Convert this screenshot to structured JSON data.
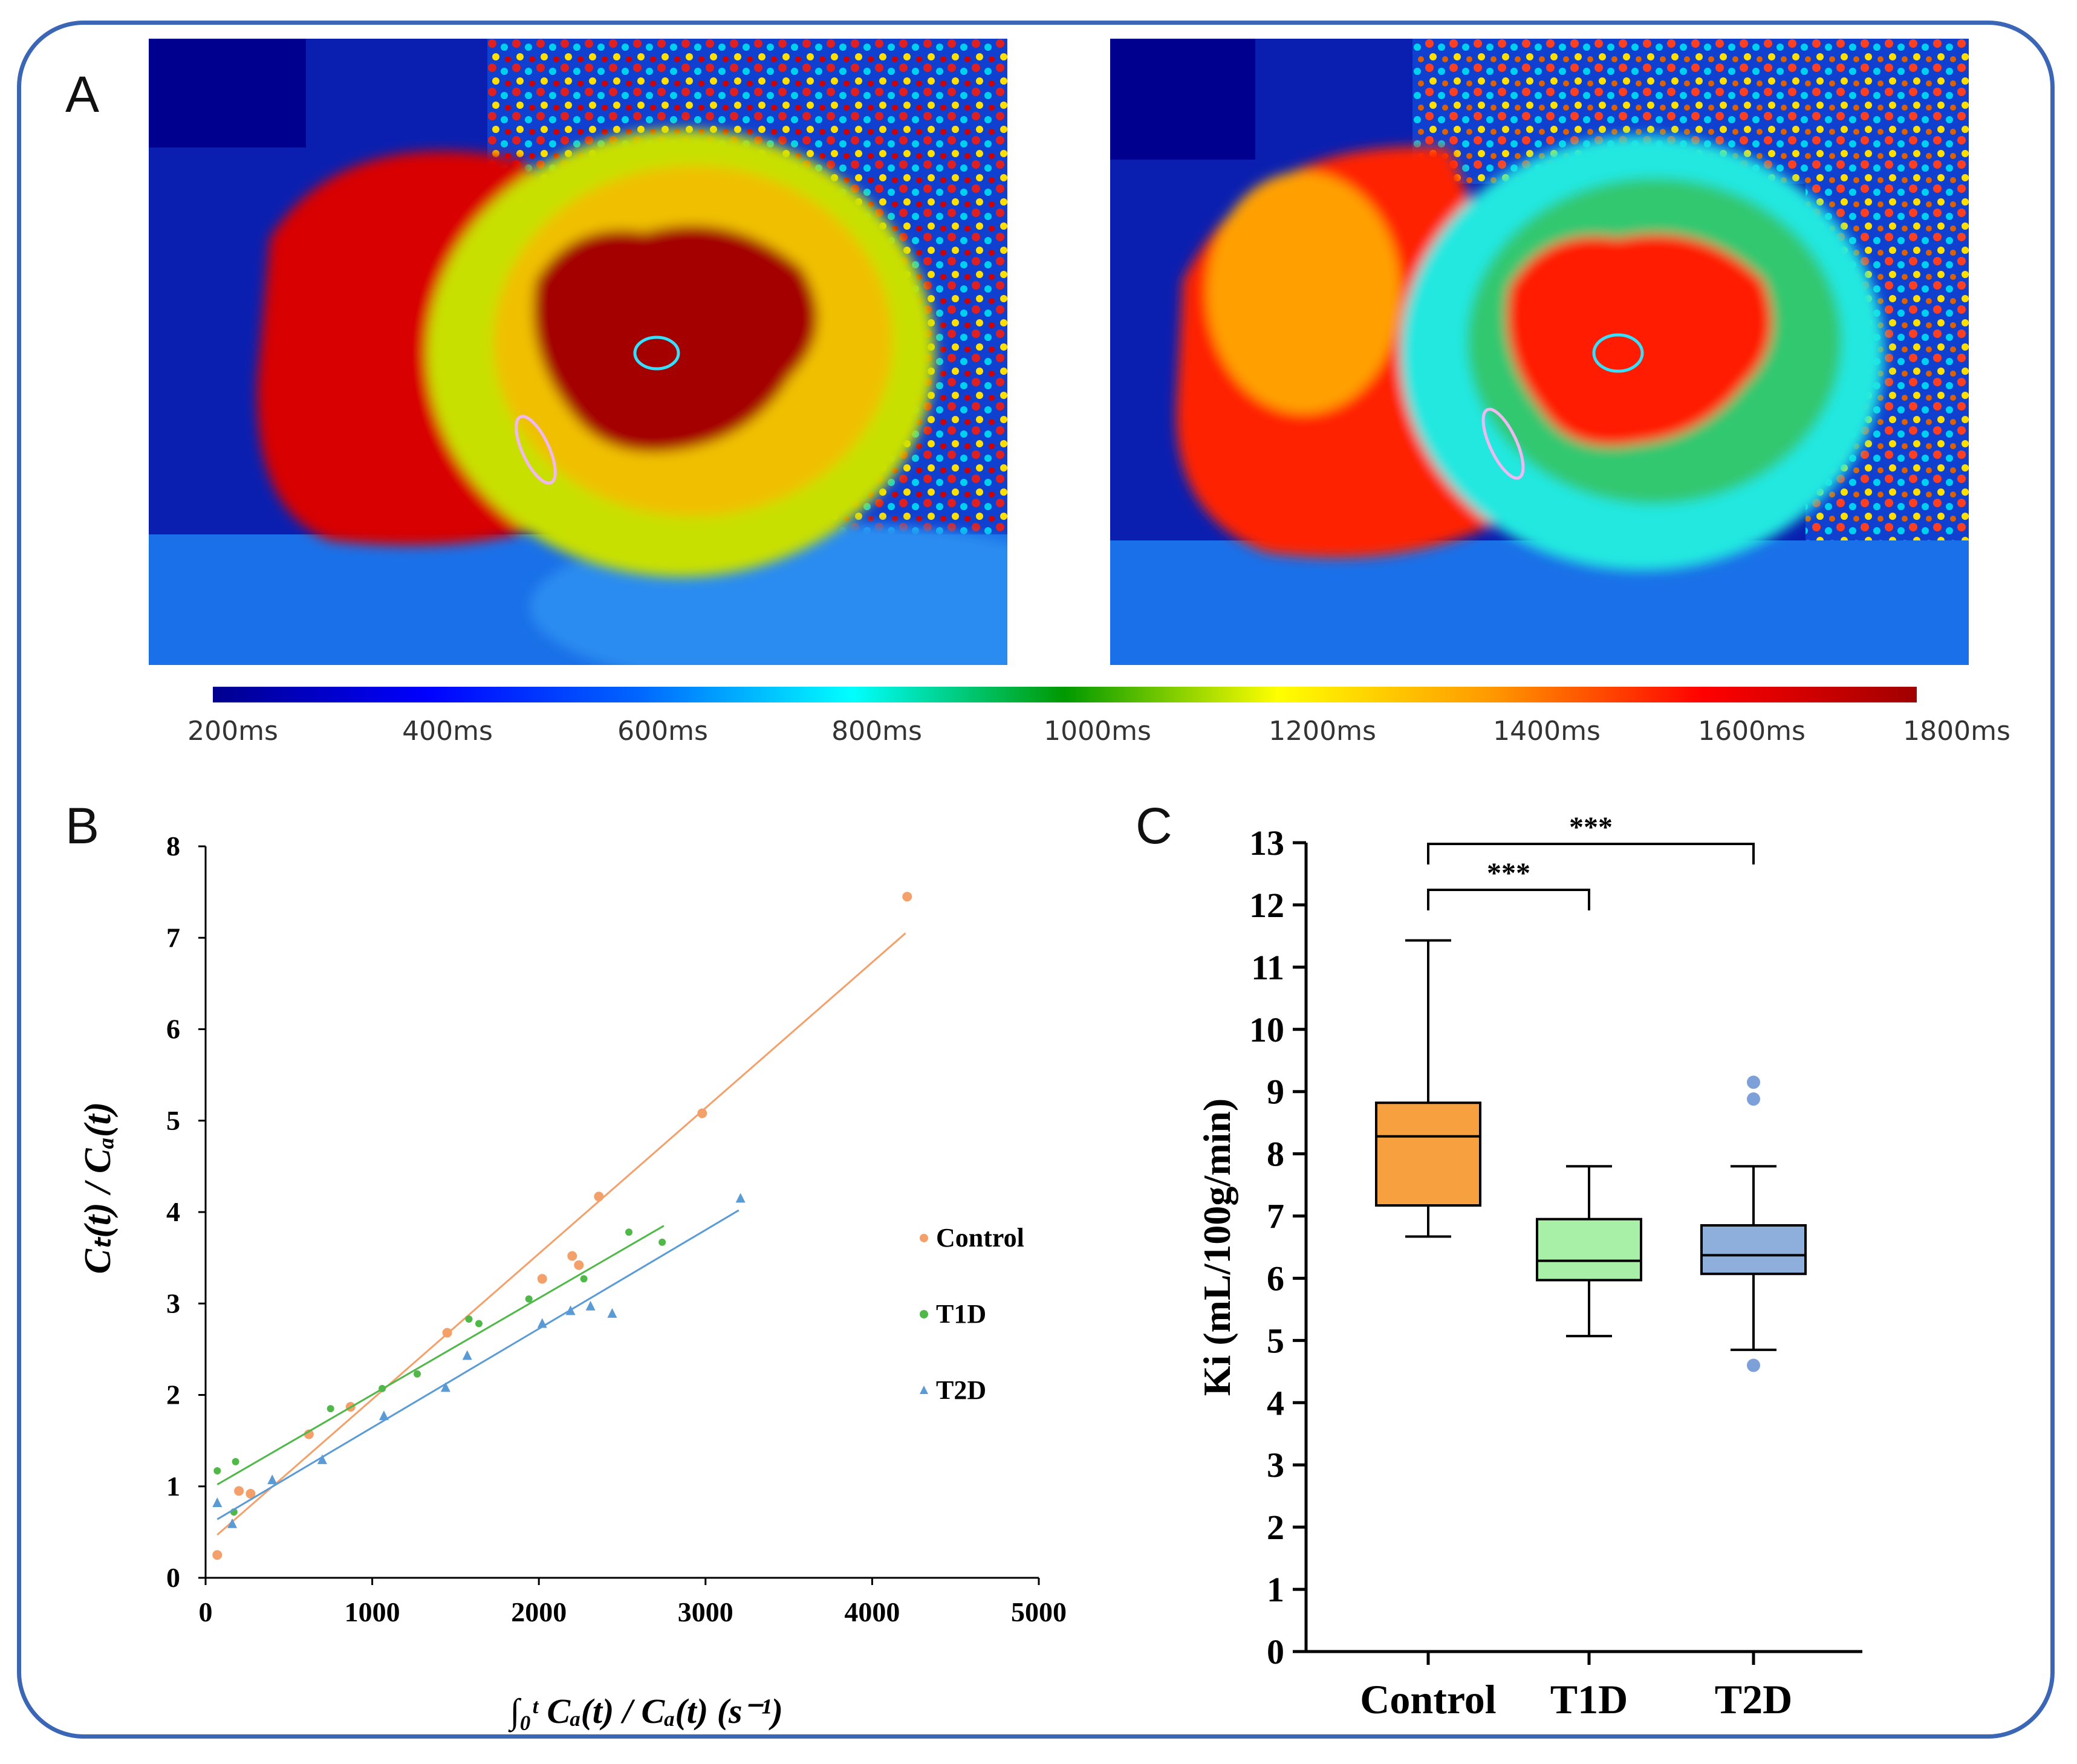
{
  "panels": {
    "a": "A",
    "b": "B",
    "c": "C"
  },
  "colorbar": {
    "labels": [
      "200ms",
      "400ms",
      "600ms",
      "800ms",
      "1000ms",
      "1200ms",
      "1400ms",
      "1600ms",
      "1800ms"
    ],
    "colors": [
      "#00008f",
      "#0000ff",
      "#0066ff",
      "#00ffff",
      "#009900",
      "#ffff00",
      "#ff9900",
      "#ff0000",
      "#a00000"
    ]
  },
  "maps": [
    {
      "myocardium": "#c8e000",
      "blood": "#a40000",
      "rv": "#d80000",
      "roi_lv": "#33e0ff",
      "roi_septum": "#f0b8f0"
    },
    {
      "myocardium": "#22e8e0",
      "blood": "#ff1a00",
      "rv": "#ff2200",
      "roi_lv": "#33e0ff",
      "roi_septum": "#f0b8f0"
    }
  ],
  "chart_data": [
    {
      "type": "scatter",
      "panel": "B",
      "xlim": [
        0,
        5000
      ],
      "ylim": [
        0,
        8
      ],
      "xticks": [
        "0",
        "1000",
        "2000",
        "3000",
        "4000",
        "5000"
      ],
      "yticks": [
        "0",
        "1",
        "2",
        "3",
        "4",
        "5",
        "6",
        "7",
        "8"
      ],
      "xlabel": "∫₀ᵗ Cₐ(t) / Cₐ(t) (s⁻¹)",
      "ylabel": "Cₜ(t) / Cₐ(t)",
      "legend_position": "right",
      "series": [
        {
          "name": "Control",
          "color": "#f4a06a",
          "marker": "circle",
          "points": [
            [
              70,
              0.25
            ],
            [
              200,
              0.95
            ],
            [
              270,
              0.92
            ],
            [
              620,
              1.57
            ],
            [
              870,
              1.87
            ],
            [
              1450,
              2.68
            ],
            [
              2020,
              3.27
            ],
            [
              2200,
              3.52
            ],
            [
              2240,
              3.42
            ],
            [
              2360,
              4.17
            ],
            [
              2980,
              5.08
            ],
            [
              4210,
              7.45
            ]
          ],
          "fit": [
            [
              70,
              0.47
            ],
            [
              4200,
              7.05
            ]
          ]
        },
        {
          "name": "T1D",
          "color": "#50b848",
          "marker": "dot",
          "points": [
            [
              70,
              1.17
            ],
            [
              180,
              1.27
            ],
            [
              170,
              0.72
            ],
            [
              750,
              1.85
            ],
            [
              1060,
              2.07
            ],
            [
              1270,
              2.23
            ],
            [
              1580,
              2.83
            ],
            [
              1640,
              2.78
            ],
            [
              1940,
              3.05
            ],
            [
              2270,
              3.27
            ],
            [
              2540,
              3.78
            ],
            [
              2740,
              3.67
            ]
          ],
          "fit": [
            [
              70,
              1.02
            ],
            [
              2750,
              3.85
            ]
          ]
        },
        {
          "name": "T2D",
          "color": "#5b9bd5",
          "marker": "triangle",
          "points": [
            [
              70,
              0.82
            ],
            [
              160,
              0.59
            ],
            [
              400,
              1.07
            ],
            [
              700,
              1.29
            ],
            [
              1070,
              1.77
            ],
            [
              1440,
              2.08
            ],
            [
              1570,
              2.43
            ],
            [
              2020,
              2.78
            ],
            [
              2190,
              2.92
            ],
            [
              2310,
              2.97
            ],
            [
              2440,
              2.89
            ],
            [
              3210,
              4.15
            ]
          ],
          "fit": [
            [
              70,
              0.64
            ],
            [
              3200,
              4.02
            ]
          ]
        }
      ]
    },
    {
      "type": "box",
      "panel": "C",
      "ylabel": "Ki (mL/100g/min)",
      "ylim": [
        0,
        13
      ],
      "yticks": [
        "0",
        "1",
        "2",
        "3",
        "4",
        "5",
        "6",
        "7",
        "8",
        "9",
        "10",
        "11",
        "12",
        "13"
      ],
      "categories": [
        "Control",
        "T1D",
        "T2D"
      ],
      "boxes": [
        {
          "name": "Control",
          "color": "#f7a040",
          "min": 6.67,
          "q1": 7.17,
          "median": 8.28,
          "q3": 8.82,
          "max": 11.43,
          "outliers": []
        },
        {
          "name": "T1D",
          "color": "#a8f0a8",
          "min": 5.07,
          "q1": 5.97,
          "median": 6.28,
          "q3": 6.95,
          "max": 7.8,
          "outliers": []
        },
        {
          "name": "T2D",
          "color": "#8eaedb",
          "min": 4.85,
          "q1": 6.07,
          "median": 6.37,
          "q3": 6.85,
          "max": 7.8,
          "outliers": [
            9.15,
            8.88,
            4.6
          ]
        }
      ],
      "significance": [
        {
          "from": "Control",
          "to": "T1D",
          "label": "***"
        },
        {
          "from": "Control",
          "to": "T2D",
          "label": "***"
        }
      ]
    }
  ]
}
